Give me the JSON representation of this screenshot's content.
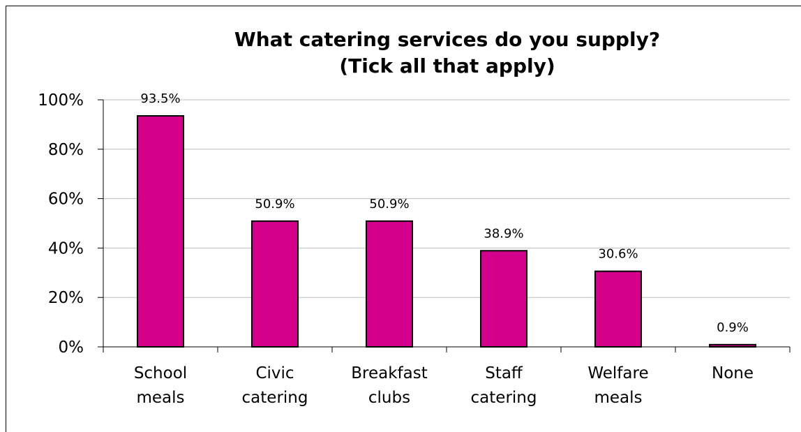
{
  "chart_data": {
    "type": "bar",
    "title_lines": [
      "What catering services do you supply?",
      "(Tick all that apply)"
    ],
    "categories": [
      [
        "School",
        "meals"
      ],
      [
        "Civic",
        "catering"
      ],
      [
        "Breakfast",
        "clubs"
      ],
      [
        "Staff",
        "catering"
      ],
      [
        "Welfare",
        "meals"
      ],
      [
        "None"
      ]
    ],
    "values": [
      93.5,
      50.9,
      50.9,
      38.9,
      30.6,
      0.9
    ],
    "data_labels": [
      "93.5%",
      "50.9%",
      "50.9%",
      "38.9%",
      "30.6%",
      "0.9%"
    ],
    "yticks": [
      "0%",
      "20%",
      "40%",
      "60%",
      "80%",
      "100%"
    ],
    "ylim": [
      0,
      100
    ],
    "grid": true,
    "colors": {
      "bar": "#D4008C",
      "bar_outline": "#000000",
      "gridline": "#BDBDBD"
    }
  }
}
